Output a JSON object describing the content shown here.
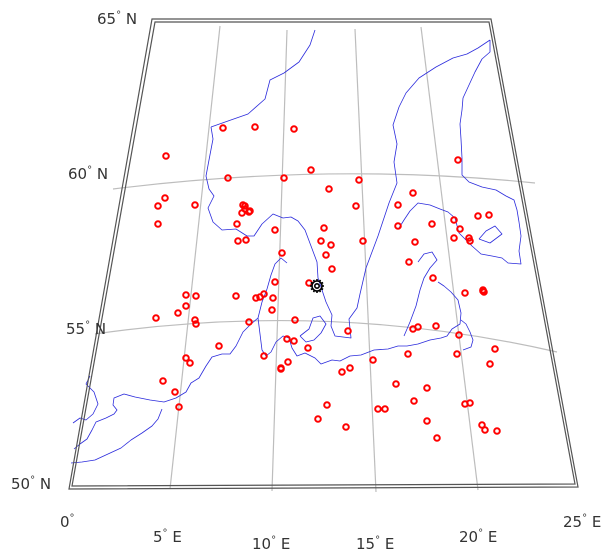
{
  "map": {
    "colors": {
      "frame": "#555555",
      "graticule": "#bdbdbd",
      "coast": "#2b2bdc",
      "station": "#ff0000",
      "center": "#000000"
    },
    "lat_labels": [
      {
        "value": "65",
        "unit": "N"
      },
      {
        "value": "60",
        "unit": "N"
      },
      {
        "value": "55",
        "unit": "N"
      },
      {
        "value": "50",
        "unit": "N"
      }
    ],
    "lon_labels": [
      {
        "value": "0",
        "unit": ""
      },
      {
        "value": "5",
        "unit": "E"
      },
      {
        "value": "10",
        "unit": "E"
      },
      {
        "value": "15",
        "unit": "E"
      },
      {
        "value": "20",
        "unit": "E"
      },
      {
        "value": "25",
        "unit": "E"
      }
    ],
    "degree_symbol": "°",
    "markers": {
      "station_icon": "circle-marker-icon",
      "center_icon": "gear-marker-icon",
      "station_count": 128
    }
  }
}
